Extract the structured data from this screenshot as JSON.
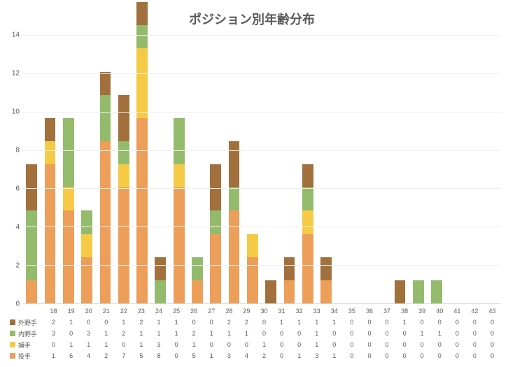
{
  "chart": {
    "type": "stacked-bar",
    "title": "ポジション別年齢分布",
    "title_fontsize": 18,
    "title_color": "#595959",
    "background_color": "#ffffff",
    "grid_color": "#efefef",
    "axis_color": "#d9d9d9",
    "text_color": "#595959",
    "tick_fontsize": 10,
    "cell_fontsize": 9,
    "y": {
      "min": 0,
      "max": 14,
      "step": 2
    },
    "categories": [
      "18",
      "19",
      "20",
      "21",
      "22",
      "23",
      "24",
      "25",
      "26",
      "27",
      "28",
      "29",
      "30",
      "31",
      "32",
      "33",
      "34",
      "35",
      "36",
      "37",
      "38",
      "39",
      "40",
      "41",
      "42",
      "43"
    ],
    "series": [
      {
        "name": "投手",
        "color": "#ed9e59",
        "values": [
          1,
          6,
          4,
          2,
          7,
          5,
          8,
          0,
          5,
          1,
          3,
          4,
          2,
          0,
          1,
          3,
          1,
          0,
          0,
          0,
          0,
          0,
          0,
          0,
          0,
          0
        ]
      },
      {
        "name": "捕手",
        "color": "#f5cb46",
        "values": [
          0,
          1,
          1,
          1,
          0,
          1,
          3,
          0,
          1,
          0,
          0,
          0,
          1,
          0,
          0,
          1,
          0,
          0,
          0,
          0,
          0,
          0,
          0,
          0,
          0,
          0
        ]
      },
      {
        "name": "内野手",
        "color": "#94bb6b",
        "values": [
          3,
          0,
          3,
          1,
          2,
          1,
          1,
          1,
          2,
          1,
          1,
          1,
          0,
          0,
          0,
          1,
          0,
          0,
          0,
          0,
          0,
          1,
          1,
          0,
          0,
          0
        ]
      },
      {
        "name": "外野手",
        "color": "#a2703c",
        "values": [
          2,
          1,
          0,
          0,
          1,
          2,
          1,
          1,
          0,
          0,
          2,
          2,
          0,
          1,
          1,
          1,
          1,
          0,
          0,
          0,
          1,
          0,
          0,
          0,
          0,
          0
        ]
      }
    ]
  }
}
